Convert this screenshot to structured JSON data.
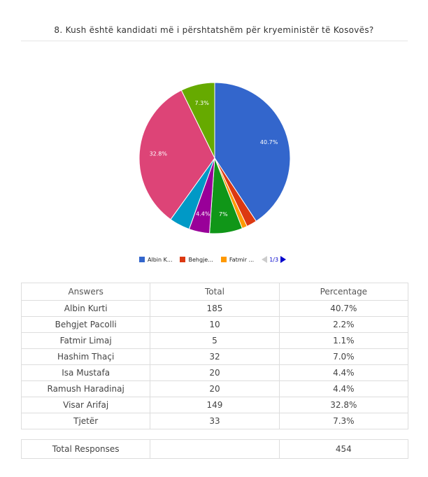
{
  "question": "8. Kush është kandidati më i përshtatshëm për kryeministër të Kosovës?",
  "chart_data": {
    "type": "pie",
    "categories": [
      "Albin Kurti",
      "Behgjet Pacolli",
      "Fatmir Limaj",
      "Hashim Thaçi",
      "Isa Mustafa",
      "Ramush Haradinaj",
      "Visar Arifaj",
      "Tjetër"
    ],
    "values": [
      185,
      10,
      5,
      32,
      20,
      20,
      149,
      33
    ],
    "colors": [
      "#3366cc",
      "#dc3912",
      "#ff9900",
      "#109618",
      "#990099",
      "#0099c6",
      "#dd4477",
      "#66aa00"
    ],
    "slice_labels": [
      "40.7%",
      "",
      "",
      "7%",
      "4.4%",
      "",
      "32.8%",
      "7.3%"
    ],
    "legend": {
      "position": "bottom",
      "items": [
        {
          "label": "Albin K...",
          "color": "#3366cc"
        },
        {
          "label": "Behgje...",
          "color": "#dc3912"
        },
        {
          "label": "Fatmir ...",
          "color": "#ff9900"
        }
      ],
      "page": "1/3"
    }
  },
  "table": {
    "headers": [
      "Answers",
      "Total",
      "Percentage"
    ],
    "rows": [
      [
        "Albin Kurti",
        "185",
        "40.7%"
      ],
      [
        "Behgjet Pacolli",
        "10",
        "2.2%"
      ],
      [
        "Fatmir Limaj",
        "5",
        "1.1%"
      ],
      [
        "Hashim Thaçi",
        "32",
        "7.0%"
      ],
      [
        "Isa Mustafa",
        "20",
        "4.4%"
      ],
      [
        "Ramush Haradinaj",
        "20",
        "4.4%"
      ],
      [
        "Visar Arifaj",
        "149",
        "32.8%"
      ],
      [
        "Tjetër",
        "33",
        "7.3%"
      ]
    ],
    "total_label": "Total Responses",
    "total_value": "454"
  }
}
